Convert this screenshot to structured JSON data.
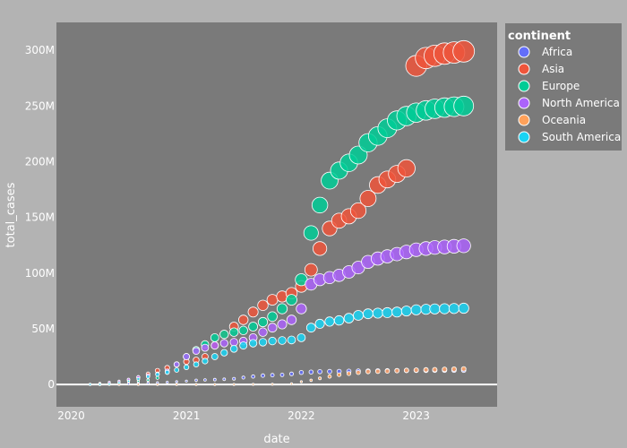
{
  "chart_data": {
    "type": "scatter",
    "title": "",
    "xlabel": "date",
    "ylabel": "total_cases",
    "x_ticks": [
      "2020",
      "2021",
      "2022",
      "2023"
    ],
    "y_ticks": [
      "0",
      "50M",
      "100M",
      "150M",
      "200M",
      "250M",
      "300M"
    ],
    "xlim": [
      "2019-11-15",
      "2023-09-15"
    ],
    "ylim": [
      -20,
      325
    ],
    "y_unit": "M",
    "marker_size_encodes": "total_cases",
    "legend": {
      "title": "continent",
      "placement": "right"
    },
    "series": [
      {
        "name": "Africa",
        "color": "#636efa",
        "points": [
          [
            "2020-04-01",
            0.02
          ],
          [
            "2020-05-01",
            0.1
          ],
          [
            "2020-06-01",
            0.3
          ],
          [
            "2020-07-01",
            0.7
          ],
          [
            "2020-08-01",
            1.0
          ],
          [
            "2020-09-01",
            1.3
          ],
          [
            "2020-10-01",
            1.6
          ],
          [
            "2020-11-01",
            2.0
          ],
          [
            "2020-12-01",
            2.5
          ],
          [
            "2021-01-01",
            3.1
          ],
          [
            "2021-02-01",
            3.8
          ],
          [
            "2021-03-01",
            4.1
          ],
          [
            "2021-04-01",
            4.4
          ],
          [
            "2021-05-01",
            4.7
          ],
          [
            "2021-06-01",
            5.2
          ],
          [
            "2021-07-01",
            6.2
          ],
          [
            "2021-08-01",
            7.2
          ],
          [
            "2021-09-01",
            8.0
          ],
          [
            "2021-10-01",
            8.4
          ],
          [
            "2021-11-01",
            8.6
          ],
          [
            "2021-12-01",
            9.5
          ],
          [
            "2022-01-01",
            10.8
          ],
          [
            "2022-02-01",
            11.2
          ],
          [
            "2022-03-01",
            11.5
          ],
          [
            "2022-04-01",
            11.7
          ],
          [
            "2022-05-01",
            11.8
          ],
          [
            "2022-06-01",
            11.9
          ],
          [
            "2022-07-01",
            12.1
          ],
          [
            "2022-08-01",
            12.2
          ],
          [
            "2022-09-01",
            12.3
          ],
          [
            "2022-10-01",
            12.4
          ],
          [
            "2022-11-01",
            12.5
          ],
          [
            "2022-12-01",
            12.6
          ],
          [
            "2023-01-01",
            12.7
          ],
          [
            "2023-02-01",
            12.7
          ],
          [
            "2023-03-01",
            12.8
          ],
          [
            "2023-04-01",
            12.8
          ],
          [
            "2023-05-01",
            12.8
          ],
          [
            "2023-06-01",
            12.8
          ]
        ]
      },
      {
        "name": "Asia",
        "color": "#ef553b",
        "points": [
          [
            "2020-03-01",
            0.1
          ],
          [
            "2020-04-01",
            0.4
          ],
          [
            "2020-05-01",
            1.0
          ],
          [
            "2020-06-01",
            2.2
          ],
          [
            "2020-07-01",
            4.0
          ],
          [
            "2020-08-01",
            6.5
          ],
          [
            "2020-09-01",
            9.5
          ],
          [
            "2020-10-01",
            12.5
          ],
          [
            "2020-11-01",
            15.0
          ],
          [
            "2020-12-01",
            18.0
          ],
          [
            "2021-01-01",
            20.5
          ],
          [
            "2021-02-01",
            22.0
          ],
          [
            "2021-03-01",
            25.0
          ],
          [
            "2021-04-01",
            35.0
          ],
          [
            "2021-05-01",
            45.0
          ],
          [
            "2021-06-01",
            52.0
          ],
          [
            "2021-07-01",
            58.0
          ],
          [
            "2021-08-01",
            65.0
          ],
          [
            "2021-09-01",
            71.0
          ],
          [
            "2021-10-01",
            76.0
          ],
          [
            "2021-11-01",
            79.0
          ],
          [
            "2021-12-01",
            82.0
          ],
          [
            "2022-01-01",
            88.0
          ],
          [
            "2022-02-01",
            103.0
          ],
          [
            "2022-03-01",
            122.0
          ],
          [
            "2022-04-01",
            140.0
          ],
          [
            "2022-05-01",
            147.0
          ],
          [
            "2022-06-01",
            151.0
          ],
          [
            "2022-07-01",
            156.0
          ],
          [
            "2022-08-01",
            167.0
          ],
          [
            "2022-09-01",
            179.0
          ],
          [
            "2022-10-01",
            184.0
          ],
          [
            "2022-11-01",
            189.0
          ],
          [
            "2022-12-01",
            194.0
          ],
          [
            "2023-01-01",
            286.0
          ],
          [
            "2023-02-01",
            293.0
          ],
          [
            "2023-03-01",
            295.0
          ],
          [
            "2023-04-01",
            297.0
          ],
          [
            "2023-05-01",
            298.0
          ],
          [
            "2023-06-01",
            299.0
          ]
        ]
      },
      {
        "name": "Europe",
        "color": "#00cc96",
        "points": [
          [
            "2020-03-01",
            0.1
          ],
          [
            "2020-04-01",
            0.7
          ],
          [
            "2020-05-01",
            1.5
          ],
          [
            "2020-06-01",
            2.0
          ],
          [
            "2020-07-01",
            2.5
          ],
          [
            "2020-08-01",
            3.0
          ],
          [
            "2020-09-01",
            4.0
          ],
          [
            "2020-10-01",
            6.0
          ],
          [
            "2020-11-01",
            11.0
          ],
          [
            "2020-12-01",
            18.0
          ],
          [
            "2021-01-01",
            25.0
          ],
          [
            "2021-02-01",
            31.0
          ],
          [
            "2021-03-01",
            36.0
          ],
          [
            "2021-04-01",
            42.0
          ],
          [
            "2021-05-01",
            45.0
          ],
          [
            "2021-06-01",
            47.0
          ],
          [
            "2021-07-01",
            48.5
          ],
          [
            "2021-08-01",
            52.0
          ],
          [
            "2021-09-01",
            56.0
          ],
          [
            "2021-10-01",
            61.0
          ],
          [
            "2021-11-01",
            68.0
          ],
          [
            "2021-12-01",
            76.0
          ],
          [
            "2022-01-01",
            94.0
          ],
          [
            "2022-02-01",
            136.0
          ],
          [
            "2022-03-01",
            161.0
          ],
          [
            "2022-04-01",
            183.0
          ],
          [
            "2022-05-01",
            192.0
          ],
          [
            "2022-06-01",
            199.0
          ],
          [
            "2022-07-01",
            206.0
          ],
          [
            "2022-08-01",
            217.0
          ],
          [
            "2022-09-01",
            223.0
          ],
          [
            "2022-10-01",
            230.0
          ],
          [
            "2022-11-01",
            237.0
          ],
          [
            "2022-12-01",
            241.0
          ],
          [
            "2023-01-01",
            244.0
          ],
          [
            "2023-02-01",
            246.0
          ],
          [
            "2023-03-01",
            247.5
          ],
          [
            "2023-04-01",
            248.5
          ],
          [
            "2023-05-01",
            249.3
          ],
          [
            "2023-06-01",
            250.0
          ]
        ]
      },
      {
        "name": "North America",
        "color": "#ab63fa",
        "points": [
          [
            "2020-03-01",
            0.1
          ],
          [
            "2020-04-01",
            1.0
          ],
          [
            "2020-05-01",
            2.0
          ],
          [
            "2020-06-01",
            3.0
          ],
          [
            "2020-07-01",
            4.5
          ],
          [
            "2020-08-01",
            6.5
          ],
          [
            "2020-09-01",
            8.0
          ],
          [
            "2020-10-01",
            9.5
          ],
          [
            "2020-11-01",
            12.0
          ],
          [
            "2020-12-01",
            18.0
          ],
          [
            "2021-01-01",
            25.0
          ],
          [
            "2021-02-01",
            30.0
          ],
          [
            "2021-03-01",
            33.0
          ],
          [
            "2021-04-01",
            35.0
          ],
          [
            "2021-05-01",
            37.0
          ],
          [
            "2021-06-01",
            38.0
          ],
          [
            "2021-07-01",
            39.0
          ],
          [
            "2021-08-01",
            42.0
          ],
          [
            "2021-09-01",
            47.0
          ],
          [
            "2021-10-01",
            51.0
          ],
          [
            "2021-11-01",
            54.0
          ],
          [
            "2021-12-01",
            58.0
          ],
          [
            "2022-01-01",
            68.0
          ],
          [
            "2022-02-01",
            90.0
          ],
          [
            "2022-03-01",
            94.0
          ],
          [
            "2022-04-01",
            96.0
          ],
          [
            "2022-05-01",
            98.0
          ],
          [
            "2022-06-01",
            101.0
          ],
          [
            "2022-07-01",
            105.0
          ],
          [
            "2022-08-01",
            110.0
          ],
          [
            "2022-09-01",
            113.0
          ],
          [
            "2022-10-01",
            115.0
          ],
          [
            "2022-11-01",
            117.0
          ],
          [
            "2022-12-01",
            119.0
          ],
          [
            "2023-01-01",
            121.0
          ],
          [
            "2023-02-01",
            122.0
          ],
          [
            "2023-03-01",
            123.0
          ],
          [
            "2023-04-01",
            123.5
          ],
          [
            "2023-05-01",
            124.0
          ],
          [
            "2023-06-01",
            124.5
          ]
        ]
      },
      {
        "name": "Oceania",
        "color": "#ffa15a",
        "points": [
          [
            "2020-04-01",
            0.01
          ],
          [
            "2020-06-01",
            0.01
          ],
          [
            "2020-08-01",
            0.03
          ],
          [
            "2020-10-01",
            0.03
          ],
          [
            "2020-12-01",
            0.04
          ],
          [
            "2021-02-01",
            0.05
          ],
          [
            "2021-04-01",
            0.05
          ],
          [
            "2021-06-01",
            0.06
          ],
          [
            "2021-08-01",
            0.1
          ],
          [
            "2021-10-01",
            0.2
          ],
          [
            "2021-12-01",
            0.6
          ],
          [
            "2022-01-01",
            2.5
          ],
          [
            "2022-02-01",
            3.8
          ],
          [
            "2022-03-01",
            5.5
          ],
          [
            "2022-04-01",
            7.2
          ],
          [
            "2022-05-01",
            8.8
          ],
          [
            "2022-06-01",
            9.8
          ],
          [
            "2022-07-01",
            10.8
          ],
          [
            "2022-08-01",
            11.5
          ],
          [
            "2022-09-01",
            11.8
          ],
          [
            "2022-10-01",
            12.0
          ],
          [
            "2022-11-01",
            12.3
          ],
          [
            "2022-12-01",
            12.7
          ],
          [
            "2023-01-01",
            13.0
          ],
          [
            "2023-02-01",
            13.2
          ],
          [
            "2023-03-01",
            13.4
          ],
          [
            "2023-04-01",
            13.6
          ],
          [
            "2023-05-01",
            13.8
          ],
          [
            "2023-06-01",
            14.0
          ]
        ]
      },
      {
        "name": "South America",
        "color": "#19d3f3",
        "points": [
          [
            "2020-03-01",
            0.1
          ],
          [
            "2020-04-01",
            0.2
          ],
          [
            "2020-05-01",
            0.5
          ],
          [
            "2020-06-01",
            1.5
          ],
          [
            "2020-07-01",
            3.0
          ],
          [
            "2020-08-01",
            5.0
          ],
          [
            "2020-09-01",
            7.0
          ],
          [
            "2020-10-01",
            9.0
          ],
          [
            "2020-11-01",
            11.0
          ],
          [
            "2020-12-01",
            13.0
          ],
          [
            "2021-01-01",
            15.5
          ],
          [
            "2021-02-01",
            18.0
          ],
          [
            "2021-03-01",
            21.0
          ],
          [
            "2021-04-01",
            25.0
          ],
          [
            "2021-05-01",
            28.5
          ],
          [
            "2021-06-01",
            32.0
          ],
          [
            "2021-07-01",
            35.0
          ],
          [
            "2021-08-01",
            37.0
          ],
          [
            "2021-09-01",
            38.0
          ],
          [
            "2021-10-01",
            39.0
          ],
          [
            "2021-11-01",
            39.5
          ],
          [
            "2021-12-01",
            40.0
          ],
          [
            "2022-01-01",
            42.0
          ],
          [
            "2022-02-01",
            51.0
          ],
          [
            "2022-03-01",
            54.5
          ],
          [
            "2022-04-01",
            56.5
          ],
          [
            "2022-05-01",
            57.5
          ],
          [
            "2022-06-01",
            59.5
          ],
          [
            "2022-07-01",
            62.0
          ],
          [
            "2022-08-01",
            63.5
          ],
          [
            "2022-09-01",
            64.0
          ],
          [
            "2022-10-01",
            64.5
          ],
          [
            "2022-11-01",
            65.0
          ],
          [
            "2022-12-01",
            66.0
          ],
          [
            "2023-01-01",
            67.0
          ],
          [
            "2023-02-01",
            67.5
          ],
          [
            "2023-03-01",
            67.8
          ],
          [
            "2023-04-01",
            68.0
          ],
          [
            "2023-05-01",
            68.2
          ],
          [
            "2023-06-01",
            68.5
          ]
        ]
      }
    ]
  },
  "colors": {
    "page_background": "#b3b3b3",
    "plot_background": "#7a7a7a",
    "zero_line": "#ffffff"
  }
}
